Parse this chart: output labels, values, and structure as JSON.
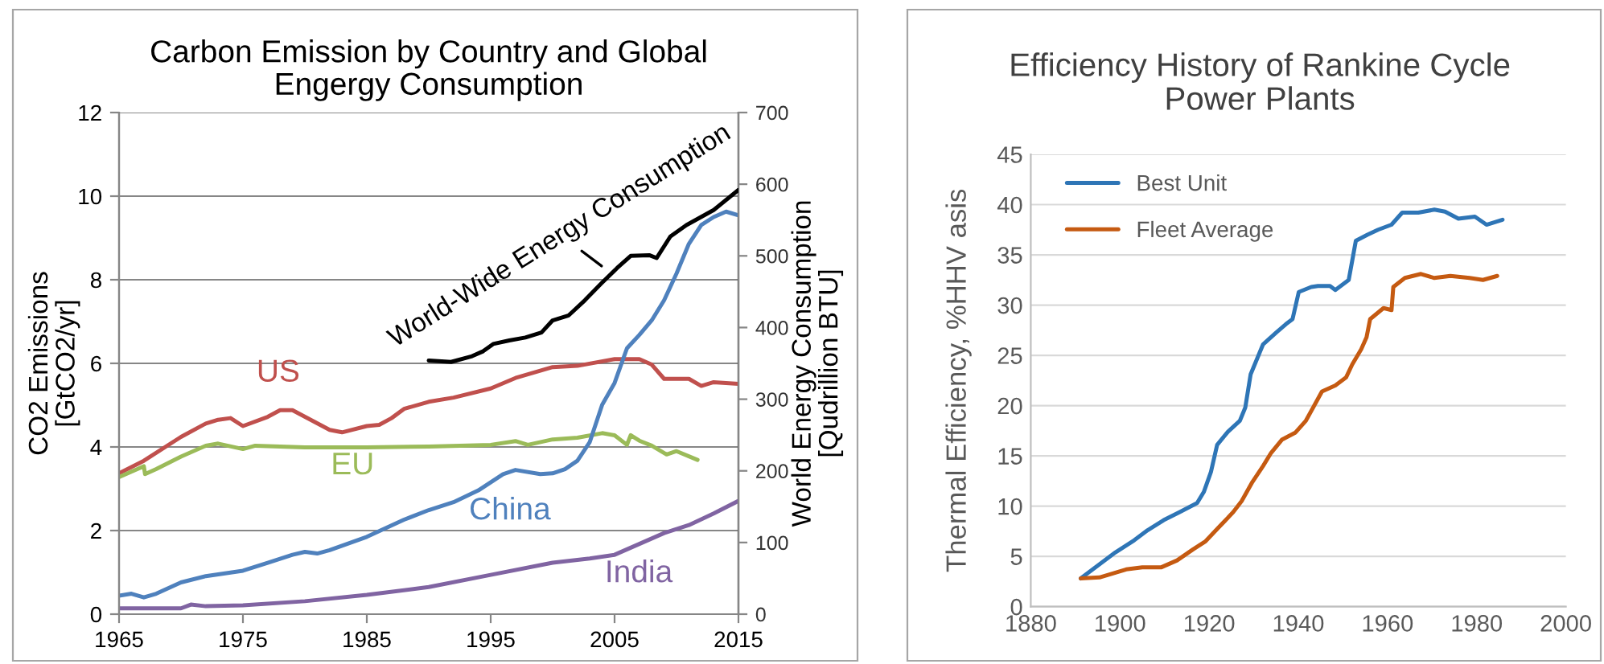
{
  "chart_data": [
    {
      "type": "line",
      "title": "Carbon Emission by Country and Global\nEngergy Consumption",
      "ylabel": "CO2 Emissions\n[GtCO2/yr]",
      "y2label": "World Energy Consumption\n[Qudrillion BTU]",
      "xlim": [
        1965,
        2015
      ],
      "xticks": [
        1965,
        1975,
        1985,
        1995,
        2005,
        2015
      ],
      "ylim": [
        0,
        12
      ],
      "yticks": [
        0,
        2,
        4,
        6,
        8,
        10,
        12
      ],
      "y2lim": [
        0,
        700
      ],
      "y2ticks": [
        0,
        100,
        200,
        300,
        400,
        500,
        600,
        700
      ],
      "grid": "y",
      "series": [
        {
          "name": "US",
          "color": "#c0504d",
          "x": [
            1965,
            1967,
            1970,
            1972,
            1973,
            1974,
            1975,
            1977,
            1978,
            1979,
            1982,
            1983,
            1985,
            1986,
            1987,
            1988,
            1990,
            1992,
            1995,
            1997,
            2000,
            2002,
            2005,
            2007,
            2008,
            2009,
            2011,
            2012,
            2013,
            2015
          ],
          "values": [
            3.37,
            3.67,
            4.24,
            4.56,
            4.65,
            4.69,
            4.5,
            4.72,
            4.88,
            4.88,
            4.41,
            4.35,
            4.5,
            4.53,
            4.69,
            4.91,
            5.08,
            5.18,
            5.4,
            5.65,
            5.91,
            5.94,
            6.1,
            6.1,
            5.97,
            5.63,
            5.63,
            5.46,
            5.55,
            5.51
          ]
        },
        {
          "name": "EU",
          "color": "#9bbb59",
          "x": [
            1965,
            1967,
            1967.1,
            1968,
            1970,
            1972,
            1973,
            1975,
            1976,
            1980,
            1985,
            1990,
            1995,
            1997,
            1998,
            2000,
            2002,
            2004,
            2005,
            2006,
            2006.3,
            2007,
            2008,
            2009.2,
            2010,
            2011.7
          ],
          "values": [
            3.28,
            3.54,
            3.35,
            3.47,
            3.77,
            4.03,
            4.08,
            3.95,
            4.03,
            3.99,
            3.99,
            4.01,
            4.05,
            4.14,
            4.05,
            4.18,
            4.22,
            4.33,
            4.28,
            4.05,
            4.28,
            4.15,
            4.03,
            3.82,
            3.9,
            3.69
          ]
        },
        {
          "name": "China",
          "color": "#4f81bd",
          "x": [
            1965,
            1966,
            1967,
            1968,
            1970,
            1972,
            1975,
            1977,
            1979,
            1980,
            1981,
            1982,
            1985,
            1988,
            1990,
            1992,
            1994,
            1996,
            1997,
            1999,
            2000,
            2001,
            2002,
            2003,
            2004,
            2005,
            2006,
            2007,
            2008,
            2009,
            2010,
            2011,
            2012,
            2013,
            2014,
            2015
          ],
          "values": [
            0.44,
            0.49,
            0.4,
            0.49,
            0.76,
            0.91,
            1.04,
            1.23,
            1.42,
            1.49,
            1.45,
            1.53,
            1.85,
            2.26,
            2.49,
            2.68,
            2.96,
            3.35,
            3.45,
            3.35,
            3.37,
            3.47,
            3.67,
            4.12,
            5.01,
            5.53,
            6.36,
            6.68,
            7.03,
            7.51,
            8.15,
            8.86,
            9.31,
            9.5,
            9.63,
            9.54
          ]
        },
        {
          "name": "India",
          "color": "#8064a2",
          "x": [
            1965,
            1970,
            1970.8,
            1972,
            1975,
            1980,
            1985,
            1990,
            1995,
            2000,
            2003,
            2005,
            2007,
            2009,
            2011,
            2013,
            2015
          ],
          "values": [
            0.14,
            0.14,
            0.23,
            0.19,
            0.21,
            0.31,
            0.46,
            0.65,
            0.94,
            1.23,
            1.33,
            1.42,
            1.68,
            1.94,
            2.13,
            2.41,
            2.71
          ]
        },
        {
          "name": "World-Wide Energy Consumption",
          "color": "#000000",
          "axis": "y2",
          "x": [
            1990,
            1991.8,
            1993.5,
            1994.4,
            1995.2,
            1996.5,
            1997.8,
            1999.1,
            2000,
            2001.3,
            2002.6,
            2003.9,
            2005.2,
            2006.3,
            2007.8,
            2008.4,
            2009.5,
            2010.8,
            2013,
            2015
          ],
          "values": [
            354,
            352,
            360,
            367,
            377,
            382,
            386,
            393,
            410,
            417,
            438,
            461,
            483,
            500,
            501,
            497,
            527,
            543,
            564,
            592
          ]
        }
      ]
    },
    {
      "type": "line",
      "title": "Efficiency History of Rankine Cycle\nPower Plants",
      "ylabel": "Thermal Efficiency, %HHV asis",
      "xlim": [
        1880,
        2000
      ],
      "xticks": [
        1880,
        1900,
        1920,
        1940,
        1960,
        1980,
        2000
      ],
      "ylim": [
        0,
        45
      ],
      "yticks": [
        0,
        5,
        10,
        15,
        20,
        25,
        30,
        35,
        40,
        45
      ],
      "grid": "y",
      "legend": "top left",
      "series": [
        {
          "name": "Best Unit",
          "color": "#2e75b6",
          "x": [
            1891.2,
            1899,
            1903.2,
            1906.2,
            1909.8,
            1913.4,
            1917.3,
            1918.8,
            1920.4,
            1921.8,
            1924.2,
            1926.9,
            1928.1,
            1929.3,
            1932.1,
            1935.1,
            1937.2,
            1938.7,
            1940.1,
            1942.9,
            1944.4,
            1947.1,
            1948.3,
            1951.3,
            1952.9,
            1955.5,
            1957.9,
            1960.9,
            1963.3,
            1966.9,
            1970.5,
            1972.9,
            1975.9,
            1979.6,
            1982.2,
            1985.8
          ],
          "values": [
            2.8,
            5.4,
            6.6,
            7.6,
            8.6,
            9.4,
            10.3,
            11.4,
            13.4,
            16.1,
            17.4,
            18.5,
            19.8,
            23.1,
            26.1,
            27.3,
            28.1,
            28.6,
            31.3,
            31.8,
            31.9,
            31.9,
            31.5,
            32.5,
            36.4,
            37.0,
            37.5,
            38.0,
            39.2,
            39.2,
            39.5,
            39.3,
            38.6,
            38.8,
            38.0,
            38.5
          ]
        },
        {
          "name": "Fleet Average",
          "color": "#c55a11",
          "x": [
            1891.2,
            1895.4,
            1901.4,
            1905,
            1909.2,
            1912.8,
            1916.4,
            1919.2,
            1922.4,
            1925.4,
            1927.3,
            1929.7,
            1932.1,
            1933.9,
            1936.3,
            1939.3,
            1941.7,
            1945.3,
            1948.3,
            1950.7,
            1952.1,
            1954.1,
            1955.3,
            1956.1,
            1959.1,
            1960.9,
            1961.3,
            1963.9,
            1967.5,
            1970.5,
            1974.1,
            1978.4,
            1981.4,
            1984.6
          ],
          "values": [
            2.8,
            2.9,
            3.7,
            3.9,
            3.9,
            4.6,
            5.7,
            6.5,
            8.0,
            9.4,
            10.5,
            12.4,
            14.0,
            15.3,
            16.6,
            17.3,
            18.5,
            21.4,
            22.0,
            22.8,
            24.1,
            25.6,
            26.8,
            28.6,
            29.7,
            29.5,
            31.8,
            32.7,
            33.1,
            32.7,
            32.9,
            32.7,
            32.5,
            32.9
          ]
        }
      ]
    }
  ]
}
